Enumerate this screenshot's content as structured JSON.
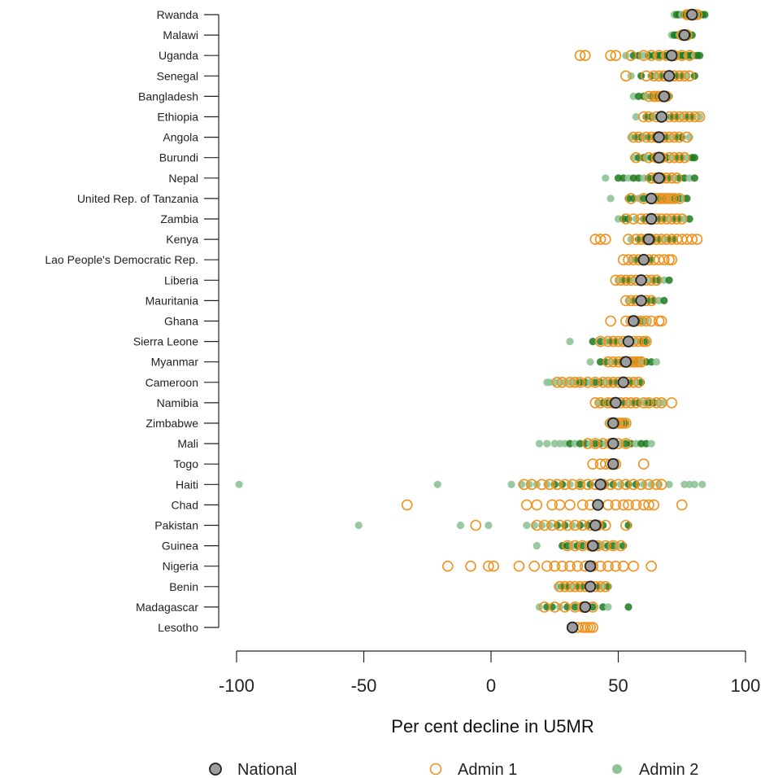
{
  "chart_data": {
    "type": "scatter",
    "xlabel": "Per cent decline in U5MR",
    "xlim": [
      -100,
      100
    ],
    "xticks": [
      "-100",
      "-50",
      "0",
      "50",
      "100"
    ],
    "colors": {
      "national_fill": "#9e9e9e",
      "national_stroke": "#222222",
      "admin1": "#f0921e",
      "admin2_light": "#8ec397",
      "admin2_dark": "#1d7a1d"
    },
    "legend": [
      {
        "key": "national",
        "label": "National"
      },
      {
        "key": "admin1",
        "label": "Admin 1"
      },
      {
        "key": "admin2",
        "label": "Admin 2"
      }
    ],
    "countries": [
      {
        "name": "Rwanda",
        "national": 79,
        "admin1": [
          77,
          78,
          79,
          80,
          81
        ],
        "admin2": [
          72,
          73,
          74,
          75,
          76,
          77,
          78,
          80,
          81,
          82,
          83,
          84
        ]
      },
      {
        "name": "Malawi",
        "national": 76,
        "admin1": [
          75,
          77
        ],
        "admin2": [
          71,
          72,
          73,
          74,
          75,
          77,
          78,
          79
        ]
      },
      {
        "name": "Uganda",
        "national": 71,
        "admin1": [
          35,
          37,
          47,
          49,
          55,
          60,
          63,
          66,
          69,
          72,
          75,
          78
        ],
        "admin2": [
          53,
          56,
          58,
          60,
          62,
          64,
          65,
          66,
          67,
          68,
          69,
          70,
          71,
          72,
          73,
          74,
          75,
          76,
          77,
          78,
          79,
          80,
          81,
          82
        ]
      },
      {
        "name": "Senegal",
        "national": 70,
        "admin1": [
          53,
          61,
          64,
          66,
          68,
          72,
          74,
          76,
          78
        ],
        "admin2": [
          55,
          59,
          63,
          65,
          67,
          69,
          71,
          73,
          75,
          77,
          80
        ]
      },
      {
        "name": "Bangladesh",
        "national": 68,
        "admin1": [
          62,
          64,
          65,
          66,
          67,
          69
        ],
        "admin2": [
          56,
          58,
          60,
          61,
          63,
          65,
          67,
          70
        ]
      },
      {
        "name": "Ethiopia",
        "national": 67,
        "admin1": [
          60,
          62,
          65,
          70,
          72,
          74,
          76,
          78,
          80,
          82
        ],
        "admin2": [
          57,
          61,
          63,
          64,
          66,
          68,
          69,
          71,
          73,
          75,
          77,
          79,
          82
        ]
      },
      {
        "name": "Angola",
        "national": 66,
        "admin1": [
          56,
          58,
          61,
          63,
          65,
          68,
          70,
          72,
          74,
          77
        ],
        "admin2": [
          55,
          57,
          59,
          60,
          62,
          64,
          66,
          67,
          69,
          71,
          73,
          75,
          78
        ]
      },
      {
        "name": "Burundi",
        "national": 66,
        "admin1": [
          57,
          62,
          65,
          67,
          70,
          72,
          74,
          76
        ],
        "admin2": [
          56,
          58,
          60,
          61,
          63,
          64,
          66,
          68,
          69,
          71,
          73,
          75,
          77,
          79,
          80
        ]
      },
      {
        "name": "Nepal",
        "national": 66,
        "admin1": [
          63,
          65,
          67,
          69,
          71,
          73
        ],
        "admin2": [
          45,
          50,
          52,
          54,
          56,
          58,
          60,
          62,
          64,
          66,
          68,
          70,
          72,
          74,
          76,
          78,
          80
        ]
      },
      {
        "name": "United Rep. of Tanzania",
        "national": 63,
        "admin1": [
          55,
          60,
          65,
          66,
          67,
          68,
          69,
          70,
          71,
          72,
          74
        ],
        "admin2": [
          47,
          54,
          56,
          58,
          60,
          62,
          64,
          66,
          68,
          70,
          72,
          74,
          76,
          77
        ]
      },
      {
        "name": "Zambia",
        "national": 63,
        "admin1": [
          53,
          56,
          59,
          61,
          63,
          65,
          67,
          69,
          71,
          73,
          75
        ],
        "admin2": [
          50,
          52,
          54,
          57,
          60,
          62,
          64,
          66,
          68,
          70,
          72,
          74,
          76,
          78
        ]
      },
      {
        "name": "Kenya",
        "national": 62,
        "admin1": [
          41,
          43,
          45,
          54,
          57,
          59,
          61,
          63,
          65,
          67,
          69,
          71,
          73,
          75,
          77,
          79,
          81
        ],
        "admin2": [
          55,
          58,
          60,
          62,
          64,
          66,
          68,
          70,
          72
        ]
      },
      {
        "name": "Lao People's Democratic Rep.",
        "national": 60,
        "admin1": [
          52,
          54,
          56,
          58,
          60,
          62,
          64,
          66,
          68,
          70,
          71
        ],
        "admin2": [
          55,
          57,
          59,
          61,
          63
        ]
      },
      {
        "name": "Liberia",
        "national": 59,
        "admin1": [
          49,
          51,
          53,
          55,
          57,
          59,
          61,
          63,
          65
        ],
        "admin2": [
          50,
          52,
          54,
          56,
          58,
          60,
          62,
          64,
          66,
          68,
          70
        ]
      },
      {
        "name": "Mauritania",
        "national": 59,
        "admin1": [
          53,
          55,
          57,
          59,
          61,
          63
        ],
        "admin2": [
          54,
          56,
          58,
          60,
          62,
          64,
          66,
          68
        ]
      },
      {
        "name": "Ghana",
        "national": 56,
        "admin1": [
          47,
          53,
          55,
          57,
          59,
          61,
          63,
          66,
          67
        ],
        "admin2": [
          55,
          57,
          59,
          61
        ]
      },
      {
        "name": "Sierra Leone",
        "national": 54,
        "admin1": [
          43,
          46,
          48,
          50,
          52,
          54,
          56,
          58,
          60,
          61
        ],
        "admin2": [
          31,
          40,
          43,
          45,
          47,
          49,
          51,
          53,
          55,
          57,
          59,
          61
        ]
      },
      {
        "name": "Myanmar",
        "national": 53,
        "admin1": [
          46,
          48,
          50,
          52,
          53,
          54,
          55,
          56,
          57,
          58,
          59
        ],
        "admin2": [
          39,
          43,
          45,
          47,
          49,
          51,
          53,
          55,
          57,
          59,
          61,
          63,
          65
        ]
      },
      {
        "name": "Cameroon",
        "national": 52,
        "admin1": [
          26,
          28,
          31,
          33,
          35,
          38,
          41,
          44,
          46,
          48,
          50,
          52,
          54,
          56,
          58
        ],
        "admin2": [
          22,
          23,
          25,
          27,
          29,
          31,
          33,
          35,
          37,
          39,
          41,
          43,
          45,
          47,
          49,
          51,
          53,
          55,
          57,
          59
        ]
      },
      {
        "name": "Namibia",
        "national": 49,
        "admin1": [
          41,
          43,
          46,
          48,
          51,
          53,
          55,
          57,
          60,
          62,
          65,
          67,
          71
        ],
        "admin2": [
          42,
          44,
          46,
          48,
          50,
          52,
          54,
          56,
          58,
          60,
          62,
          64,
          66,
          68
        ]
      },
      {
        "name": "Zimbabwe",
        "national": 48,
        "admin1": [
          47,
          49,
          50,
          51,
          52,
          53
        ],
        "admin2": [
          46,
          48,
          50,
          52,
          53
        ]
      },
      {
        "name": "Mali",
        "national": 48,
        "admin1": [
          38,
          41,
          44,
          47,
          50,
          53
        ],
        "admin2": [
          19,
          22,
          25,
          27,
          29,
          31,
          33,
          35,
          37,
          39,
          41,
          43,
          45,
          47,
          49,
          51,
          53,
          55,
          57,
          59,
          61,
          63
        ]
      },
      {
        "name": "Togo",
        "national": 48,
        "admin1": [
          40,
          43,
          45,
          47,
          49,
          60
        ],
        "admin2": []
      },
      {
        "name": "Haiti",
        "national": 43,
        "admin1": [
          13,
          16,
          20,
          23,
          26,
          29,
          32,
          35,
          38,
          41,
          44,
          47,
          50,
          53,
          56,
          59,
          62,
          65,
          67
        ],
        "admin2": [
          -99,
          -21,
          8,
          12,
          15,
          18,
          22,
          25,
          28,
          31,
          35,
          39,
          42,
          45,
          48,
          51,
          54,
          57,
          60,
          63,
          66,
          70,
          76,
          78,
          80,
          83
        ]
      },
      {
        "name": "Chad",
        "national": 42,
        "admin1": [
          -33,
          14,
          18,
          24,
          27,
          31,
          36,
          39,
          42,
          46,
          49,
          52,
          54,
          57,
          60,
          62,
          64,
          75
        ],
        "admin2": []
      },
      {
        "name": "Pakistan",
        "national": 41,
        "admin1": [
          -6,
          18,
          21,
          24,
          27,
          30,
          33,
          36,
          39,
          42,
          45,
          53
        ],
        "admin2": [
          -52,
          -12,
          -1,
          14,
          17,
          20,
          23,
          26,
          29,
          32,
          35,
          38,
          41,
          44,
          54
        ]
      },
      {
        "name": "Guinea",
        "national": 40,
        "admin1": [
          30,
          33,
          36,
          39,
          42,
          45,
          48,
          51
        ],
        "admin2": [
          18,
          28,
          30,
          32,
          34,
          36,
          38,
          40,
          42,
          44,
          46,
          48,
          50,
          52
        ]
      },
      {
        "name": "Nigeria",
        "national": 39,
        "admin1": [
          -17,
          -8,
          -1,
          1,
          11,
          17,
          22,
          25,
          28,
          31,
          34,
          37,
          40,
          43,
          46,
          49,
          52,
          56,
          63
        ],
        "admin2": []
      },
      {
        "name": "Benin",
        "national": 39,
        "admin1": [
          27,
          29,
          31,
          33,
          35,
          37,
          39,
          41,
          43,
          45
        ],
        "admin2": [
          26,
          28,
          30,
          32,
          34,
          36,
          38,
          40,
          42,
          44,
          46
        ]
      },
      {
        "name": "Madagascar",
        "national": 37,
        "admin1": [
          21,
          25,
          29,
          33,
          36,
          40
        ],
        "admin2": [
          19,
          22,
          24,
          27,
          30,
          33,
          37,
          40,
          44,
          46,
          54
        ]
      },
      {
        "name": "Lesotho",
        "national": 32,
        "admin1": [
          34,
          36,
          37,
          38,
          39,
          40
        ],
        "admin2": []
      }
    ]
  }
}
